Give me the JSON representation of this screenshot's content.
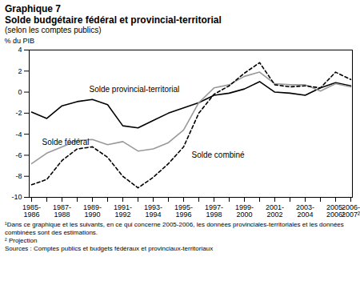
{
  "chart_data": {
    "type": "line",
    "chart_label": "Graphique 7",
    "title": "Solde budgétaire fédéral et provincial-territorial",
    "subtitle": "(selon les comptes publics)",
    "y_label": "% du PIB",
    "categories": [
      "1985-1986",
      null,
      "1987-1988",
      null,
      "1989-1990",
      null,
      "1991-1992",
      null,
      "1993-1994",
      null,
      "1995-1996",
      null,
      "1997-1998",
      null,
      "1999-2000",
      null,
      "2001-2002",
      null,
      "2003-2004",
      null,
      "2005-2006¹",
      "2006-2007²"
    ],
    "series": [
      {
        "name": "Solde provincial-territorial",
        "color": "#000000",
        "line_style": "solid",
        "values": [
          -1.9,
          -2.5,
          -1.3,
          -0.9,
          -0.7,
          -1.2,
          -3.2,
          -3.4,
          -2.7,
          -2.0,
          -1.5,
          -1.0,
          -0.3,
          -0.1,
          0.3,
          1.0,
          0.0,
          -0.1,
          -0.3,
          0.4,
          0.9,
          0.6
        ]
      },
      {
        "name": "Solde fédéral",
        "color": "#999999",
        "line_style": "solid",
        "values": [
          -6.8,
          -5.8,
          -5.2,
          -4.6,
          -4.5,
          -5.0,
          -4.7,
          -5.6,
          -5.4,
          -4.8,
          -3.6,
          -1.0,
          0.4,
          0.7,
          1.5,
          1.9,
          0.8,
          0.7,
          0.7,
          0.1,
          0.8,
          0.5
        ]
      },
      {
        "name": "Solde combiné",
        "color": "#000000",
        "line_style": "dashed",
        "values": [
          -8.8,
          -8.3,
          -6.5,
          -5.4,
          -5.2,
          -6.2,
          -8.0,
          -9.1,
          -8.1,
          -6.8,
          -5.2,
          -2.0,
          -0.2,
          0.6,
          1.8,
          2.8,
          0.7,
          0.5,
          0.6,
          0.4,
          1.9,
          1.2
        ]
      }
    ],
    "ylim": [
      -10,
      4
    ],
    "yticks": [
      -10,
      -8,
      -6,
      -4,
      -2,
      0,
      2,
      4
    ],
    "grid": false,
    "notes": [
      "¹Dans ce graphique et les suivants, en ce qui concerne 2005-2006, les données provinciales-territoriales et les données combinées sont des estimations.",
      "² Projection",
      "Sources : Comptes publics et budgets fédéraux et provinciaux-territoriaux"
    ]
  }
}
